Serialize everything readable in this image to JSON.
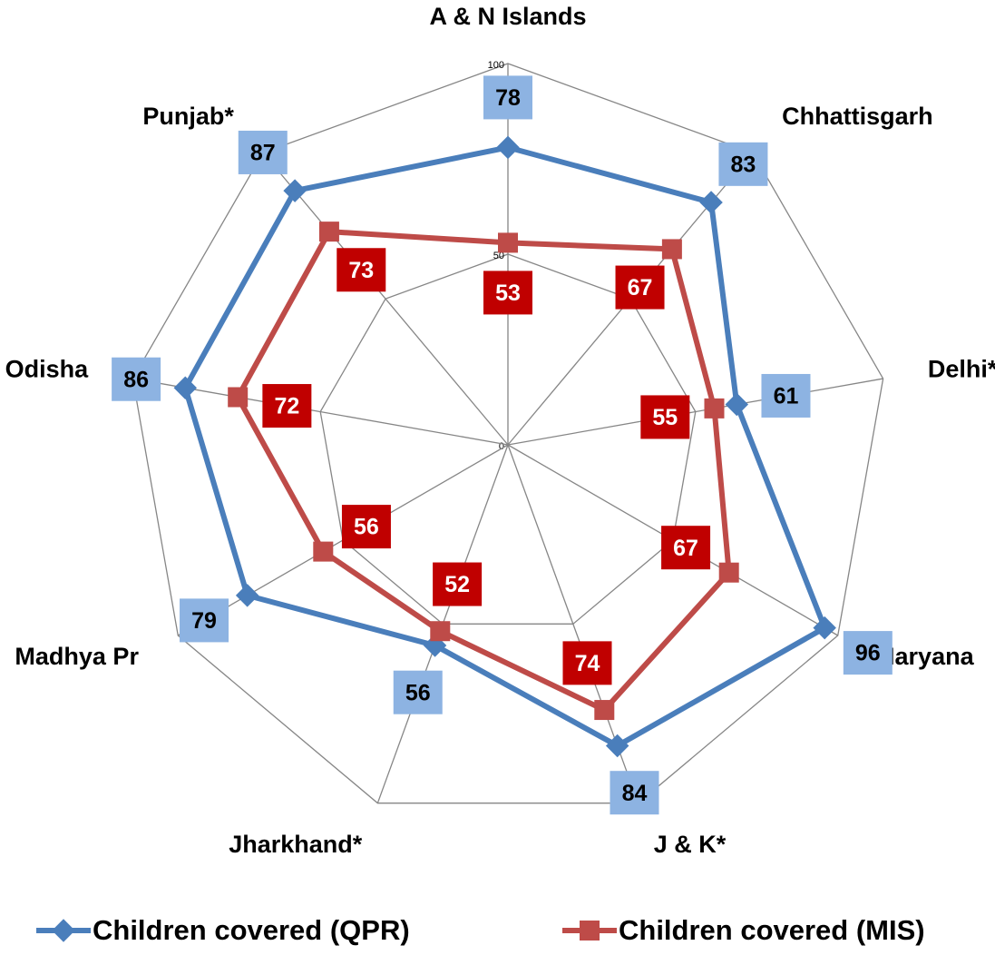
{
  "chart_data": {
    "type": "radar",
    "categories": [
      "A & N Islands",
      "Chhattisgarh",
      "Delhi*",
      "Haryana",
      "J & K*",
      "Jharkhand*",
      "Madhya Pr",
      "Odisha",
      "Punjab*"
    ],
    "series": [
      {
        "name": "Children covered (QPR)",
        "color": "#4a7ebb",
        "values": [
          78,
          83,
          61,
          96,
          84,
          56,
          79,
          86,
          87
        ]
      },
      {
        "name": "Children covered (MIS)",
        "color": "#be4b48",
        "values": [
          53,
          67,
          55,
          67,
          74,
          52,
          56,
          72,
          73
        ]
      }
    ],
    "ylim": [
      0,
      100
    ],
    "yticks": [
      0,
      50,
      100
    ],
    "legend": "bottom"
  }
}
